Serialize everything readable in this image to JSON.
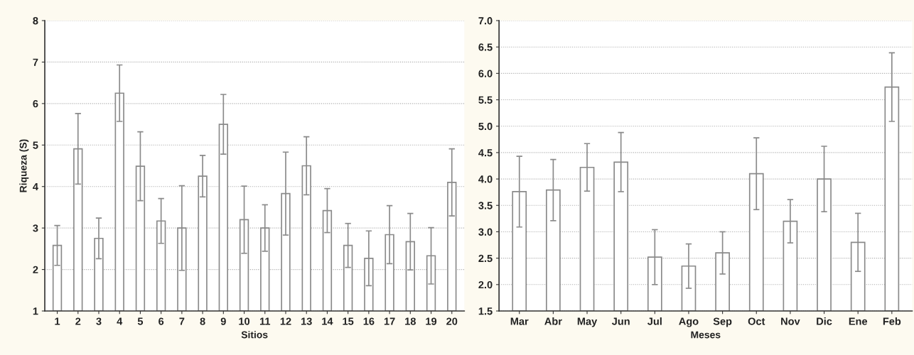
{
  "chart_data": [
    {
      "type": "bar",
      "xlabel": "Sitios",
      "ylabel": "Riqueza (S)",
      "color": "#ffffff",
      "grid": "y",
      "categories": [
        "1",
        "2",
        "3",
        "4",
        "5",
        "6",
        "7",
        "8",
        "9",
        "10",
        "11",
        "12",
        "13",
        "14",
        "15",
        "16",
        "17",
        "18",
        "19",
        "20"
      ],
      "values": [
        2.58,
        4.91,
        2.75,
        6.25,
        4.49,
        3.17,
        3.0,
        4.25,
        5.5,
        3.2,
        3.0,
        3.83,
        4.5,
        3.42,
        2.58,
        2.27,
        2.84,
        2.67,
        2.33,
        4.1
      ],
      "errors": [
        0.48,
        0.85,
        0.49,
        0.68,
        0.83,
        0.54,
        1.02,
        0.5,
        0.72,
        0.81,
        0.56,
        1.0,
        0.7,
        0.53,
        0.53,
        0.66,
        0.7,
        0.68,
        0.68,
        0.81
      ],
      "ylim": [
        1,
        8
      ],
      "yticks": [
        1,
        2,
        3,
        4,
        5,
        6,
        7,
        8
      ]
    },
    {
      "type": "bar",
      "xlabel": "Meses",
      "color": "#ffffff",
      "grid": "y",
      "categories": [
        "Mar",
        "Abr",
        "May",
        "Jun",
        "Jul",
        "Ago",
        "Sep",
        "Oct",
        "Nov",
        "Dic",
        "Ene",
        "Feb"
      ],
      "values": [
        3.76,
        3.79,
        4.22,
        4.32,
        2.52,
        2.35,
        2.6,
        4.1,
        3.2,
        4.0,
        2.8,
        5.74
      ],
      "errors": [
        0.67,
        0.58,
        0.45,
        0.56,
        0.52,
        0.42,
        0.4,
        0.68,
        0.41,
        0.62,
        0.55,
        0.65
      ],
      "ylim": [
        1.5,
        7
      ],
      "yticks": [
        {
          "value": 1.5,
          "label": "1.5"
        },
        {
          "value": 2,
          "label": "2.0"
        },
        {
          "value": 2.5,
          "label": "2.5"
        },
        {
          "value": 3,
          "label": "3.0"
        },
        {
          "value": 3.5,
          "label": "3.5"
        },
        {
          "value": 4,
          "label": "4.0"
        },
        {
          "value": 4.5,
          "label": "4.5"
        },
        {
          "value": 5,
          "label": "5.0"
        },
        {
          "value": 5.5,
          "label": "5.5"
        },
        {
          "value": 6,
          "label": "6.0"
        },
        {
          "value": 6.5,
          "label": "6.5"
        },
        {
          "value": 7,
          "label": "7.0"
        }
      ]
    }
  ]
}
